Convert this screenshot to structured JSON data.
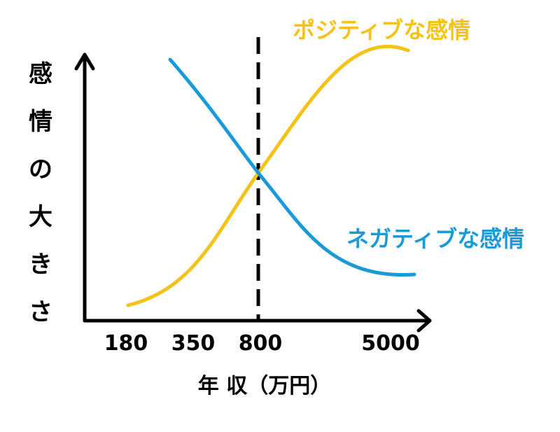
{
  "chart_data": {
    "type": "line",
    "ylabel": "感情の大きさ",
    "xlabel": "年 収（万円）",
    "x_ticks": [
      "180",
      "350",
      "800",
      "5000"
    ],
    "reference_line_x": "800",
    "series": [
      {
        "name": "ポジティブな感情",
        "color": "#F5C218",
        "trend": "increasing",
        "points": [
          {
            "x": "180",
            "y": 0.0
          },
          {
            "x": "350",
            "y": 0.12
          },
          {
            "x": "800",
            "y": 0.55
          },
          {
            "x": "5000",
            "y": 1.0
          }
        ]
      },
      {
        "name": "ネガティブな感情",
        "color": "#1A9AD6",
        "trend": "decreasing",
        "points": [
          {
            "x": "350",
            "y": 0.95
          },
          {
            "x": "800",
            "y": 0.55
          },
          {
            "x": "5000",
            "y": 0.12
          }
        ]
      }
    ],
    "grid": false,
    "legend": "inline labels at line ends"
  }
}
